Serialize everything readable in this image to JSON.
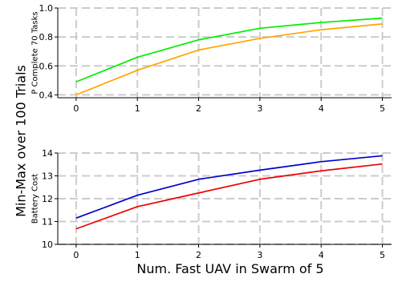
{
  "figure": {
    "supylabel": "Min-Max over 100 Trials",
    "supxlabel": "Num. Fast UAV in Swarm of 5"
  },
  "chart_data": [
    {
      "type": "line",
      "ylabel": "P Complete 70 Tasks",
      "xlabel": "",
      "x": [
        0,
        1,
        2,
        3,
        4,
        5
      ],
      "xticks": [
        "0",
        "1",
        "2",
        "3",
        "4",
        "5"
      ],
      "yticks": [
        "0.4",
        "0.6",
        "0.8",
        "1.0"
      ],
      "xlim": [
        -0.3,
        5.15
      ],
      "ylim": [
        0.38,
        1.0
      ],
      "grid": true,
      "series": [
        {
          "color": "#00ee00",
          "values": [
            0.49,
            0.66,
            0.78,
            0.86,
            0.9,
            0.93
          ]
        },
        {
          "color": "#ffa500",
          "values": [
            0.4,
            0.57,
            0.71,
            0.79,
            0.85,
            0.89
          ]
        }
      ]
    },
    {
      "type": "line",
      "ylabel": "Battery Cost",
      "xlabel": "",
      "x": [
        0,
        1,
        2,
        3,
        4,
        5
      ],
      "xticks": [
        "0",
        "1",
        "2",
        "3",
        "4",
        "5"
      ],
      "yticks": [
        "10",
        "11",
        "12",
        "13",
        "14"
      ],
      "xlim": [
        -0.3,
        5.15
      ],
      "ylim": [
        10.0,
        14.0
      ],
      "grid": true,
      "series": [
        {
          "color": "#0000cc",
          "values": [
            11.15,
            12.15,
            12.85,
            13.25,
            13.62,
            13.88
          ]
        },
        {
          "color": "#ee0000",
          "values": [
            10.68,
            11.65,
            12.25,
            12.85,
            13.22,
            13.52
          ]
        }
      ]
    }
  ]
}
